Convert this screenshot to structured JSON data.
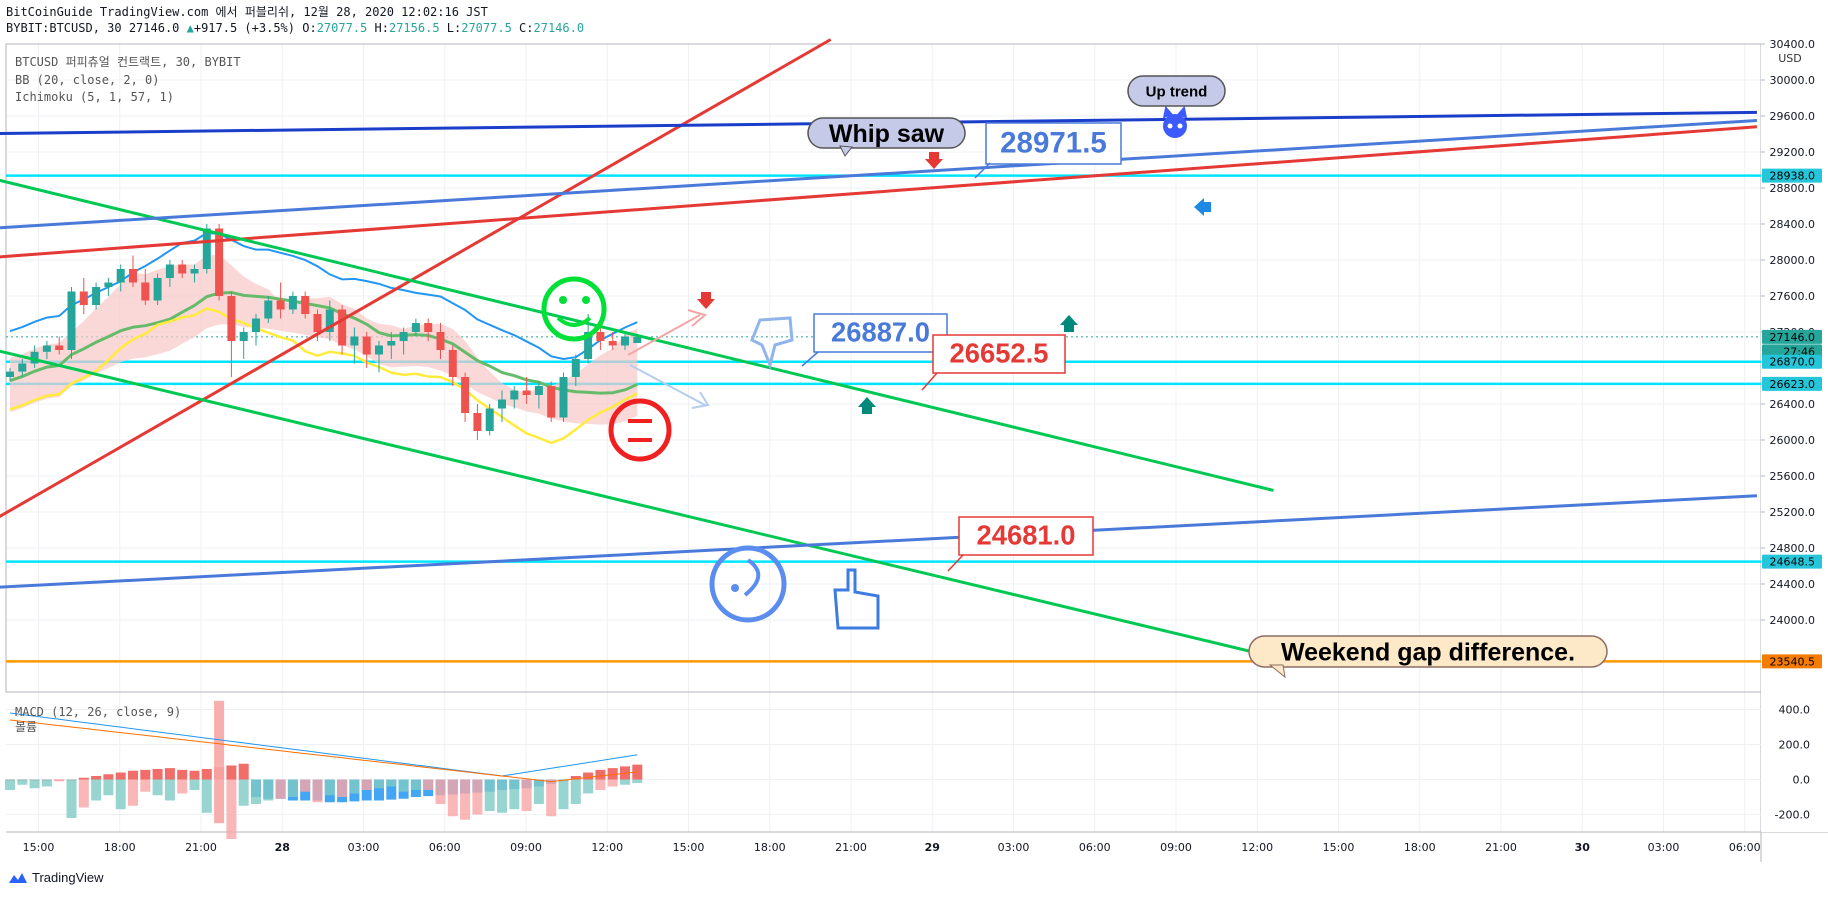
{
  "header": {
    "line1": "BitCoinGuide TradingView.com 에서 퍼블리쉬, 12월 28, 2020 12:02:16 JST",
    "sym": "BYBIT:BTCUSD, 30 27146.0",
    "change": "+917.5 (+3.5%)",
    "o_label": "O:",
    "o": "27077.5",
    "h_label": "H:",
    "h": "27156.5",
    "l_label": "L:",
    "l": "27077.5",
    "c_label": "C:",
    "c": "27146.0"
  },
  "legend": {
    "title": "BTCUSD 퍼피츄얼 컨트랙트, 30, BYBIT",
    "bb": "BB (20, close, 2, 0)",
    "ichimoku": "Ichimoku (5, 1, 57, 1)",
    "macd": "MACD (12, 26, close, 9)",
    "macd_sub": "볼륨"
  },
  "logo_text": "TradingView",
  "currency": "USD",
  "chart_data": {
    "type": "candlestick",
    "symbol": "BYBIT:BTCUSD",
    "interval": "30",
    "price_axis": {
      "min": 23200,
      "max": 30400,
      "tick_labels": [
        "30400.0",
        "30000.0",
        "29600.0",
        "29200.0",
        "28800.0",
        "28400.0",
        "28000.0",
        "27600.0",
        "27200.0",
        "26400.0",
        "26000.0",
        "25600.0",
        "25200.0",
        "24800.0",
        "24400.0",
        "24000.0"
      ],
      "tick_values": [
        30400,
        30000,
        29600,
        29200,
        28800,
        28400,
        28000,
        27600,
        27200,
        26400,
        26000,
        25600,
        25200,
        24800,
        24400,
        24000
      ],
      "badges": [
        {
          "label": "28938.0",
          "value": 28938,
          "color": "#26c6da"
        },
        {
          "label": "27146.0",
          "value": 27146,
          "color": "#26a69a"
        },
        {
          "label": "27:46",
          "value": 26985,
          "color": "#26a69a"
        },
        {
          "label": "26870.0",
          "value": 26870,
          "color": "#26c6da"
        },
        {
          "label": "26623.0",
          "value": 26623,
          "color": "#26c6da"
        },
        {
          "label": "24648.5",
          "value": 24648.5,
          "color": "#26c6da"
        },
        {
          "label": "23540.5",
          "value": 23540.5,
          "color": "#f57c00"
        }
      ]
    },
    "time_axis": {
      "labels": [
        "15:00",
        "18:00",
        "21:00",
        "28",
        "03:00",
        "06:00",
        "09:00",
        "12:00",
        "15:00",
        "18:00",
        "21:00",
        "29",
        "03:00",
        "06:00",
        "09:00",
        "12:00",
        "15:00",
        "18:00",
        "21:00",
        "30",
        "03:00",
        "06:00"
      ],
      "bold": [
        "28",
        "29",
        "30"
      ],
      "t_start": 0.6,
      "t_end": 22.2
    },
    "candles": [
      [
        0,
        26700,
        26800,
        26650,
        26760
      ],
      [
        1,
        26760,
        26900,
        26700,
        26850
      ],
      [
        2,
        26850,
        27050,
        26800,
        26980
      ],
      [
        3,
        26980,
        27100,
        26900,
        27050
      ],
      [
        4,
        27050,
        27150,
        26950,
        27000
      ],
      [
        5,
        27000,
        27700,
        26900,
        27650
      ],
      [
        6,
        27650,
        27800,
        27400,
        27500
      ],
      [
        7,
        27500,
        27750,
        27450,
        27700
      ],
      [
        8,
        27700,
        27800,
        27600,
        27750
      ],
      [
        9,
        27750,
        27950,
        27650,
        27900
      ],
      [
        10,
        27900,
        28050,
        27700,
        27750
      ],
      [
        11,
        27750,
        27900,
        27500,
        27550
      ],
      [
        12,
        27550,
        27850,
        27500,
        27800
      ],
      [
        13,
        27800,
        28000,
        27700,
        27950
      ],
      [
        14,
        27950,
        28000,
        27800,
        27850
      ],
      [
        15,
        27850,
        27950,
        27750,
        27900
      ],
      [
        16,
        27900,
        28400,
        27850,
        28350
      ],
      [
        17,
        28350,
        28400,
        27550,
        27600
      ],
      [
        18,
        27600,
        27650,
        26700,
        27100
      ],
      [
        19,
        27100,
        27250,
        26900,
        27200
      ],
      [
        20,
        27200,
        27400,
        27050,
        27350
      ],
      [
        21,
        27350,
        27600,
        27300,
        27550
      ],
      [
        22,
        27550,
        27750,
        27350,
        27450
      ],
      [
        23,
        27450,
        27650,
        27400,
        27600
      ],
      [
        24,
        27600,
        27650,
        27350,
        27400
      ],
      [
        25,
        27400,
        27450,
        27100,
        27200
      ],
      [
        26,
        27200,
        27550,
        27100,
        27450
      ],
      [
        27,
        27450,
        27500,
        26950,
        27050
      ],
      [
        28,
        27050,
        27250,
        26850,
        27150
      ],
      [
        29,
        27150,
        27200,
        26800,
        26950
      ],
      [
        30,
        26950,
        27100,
        26750,
        27050
      ],
      [
        31,
        27050,
        27200,
        26900,
        27100
      ],
      [
        32,
        27100,
        27250,
        26950,
        27200
      ],
      [
        33,
        27200,
        27350,
        27150,
        27300
      ],
      [
        34,
        27300,
        27350,
        27100,
        27200
      ],
      [
        35,
        27200,
        27300,
        26900,
        27000
      ],
      [
        36,
        27000,
        27050,
        26600,
        26700
      ],
      [
        37,
        26700,
        26750,
        26200,
        26300
      ],
      [
        38,
        26300,
        26400,
        26000,
        26100
      ],
      [
        39,
        26100,
        26400,
        26050,
        26350
      ],
      [
        40,
        26350,
        26550,
        26200,
        26450
      ],
      [
        41,
        26450,
        26600,
        26350,
        26550
      ],
      [
        42,
        26550,
        26700,
        26400,
        26500
      ],
      [
        43,
        26500,
        26650,
        26350,
        26600
      ],
      [
        44,
        26600,
        26650,
        26200,
        26250
      ],
      [
        45,
        26250,
        26750,
        26200,
        26700
      ],
      [
        46,
        26700,
        26950,
        26600,
        26900
      ],
      [
        47,
        26900,
        27400,
        26850,
        27200
      ],
      [
        48,
        27200,
        27250,
        27000,
        27100
      ],
      [
        49,
        27100,
        27200,
        27000,
        27050
      ],
      [
        50,
        27050,
        27200,
        27000,
        27150
      ],
      [
        51,
        27077.5,
        27156.5,
        27077.5,
        27146
      ]
    ],
    "indicators": {
      "bb": "BB (20, close, 2, 0)",
      "ichimoku": "Ichimoku (5, 1, 57, 1)"
    },
    "macd": {
      "label": "MACD (12, 26, close, 9)",
      "axis_labels": [
        "400.0",
        "200.0",
        "0.0",
        "-200.0"
      ],
      "axis_values": [
        400,
        200,
        0,
        -200
      ],
      "histogram": [
        0,
        0,
        0,
        0,
        0,
        0,
        10,
        20,
        30,
        40,
        50,
        55,
        60,
        65,
        55,
        50,
        60,
        70,
        80,
        90,
        -100,
        -110,
        -110,
        -120,
        -120,
        -120,
        -130,
        -130,
        -125,
        -120,
        -120,
        -115,
        -110,
        -100,
        -95,
        -90,
        -85,
        -80,
        -75,
        -70,
        -60,
        -55,
        -50,
        -40,
        -25,
        -10,
        20,
        40,
        55,
        65,
        75,
        85
      ],
      "volume": [
        -60,
        -30,
        -50,
        -40,
        -10,
        -220,
        -160,
        -120,
        -90,
        -170,
        -150,
        -70,
        -90,
        -120,
        -80,
        -60,
        -190,
        -260,
        -340,
        -150,
        -140,
        -120,
        -110,
        -100,
        -70,
        -130,
        -90,
        -100,
        -80,
        -60,
        -50,
        -40,
        -70,
        -60,
        -60,
        -140,
        -210,
        -230,
        -200,
        -180,
        -190,
        -170,
        -180,
        -140,
        -210,
        -170,
        -140,
        -80,
        -60,
        -40,
        -30,
        -20
      ]
    },
    "annotations": [
      {
        "text": "Whip saw",
        "price": 29480,
        "kind": "callout"
      },
      {
        "text": "28971.5",
        "price": 29280,
        "kind": "price-label"
      },
      {
        "text": "Up trend",
        "price": 29850,
        "kind": "callout"
      },
      {
        "text": "26887.0",
        "price": 27280,
        "kind": "price-label"
      },
      {
        "text": "26652.5",
        "price": 27000,
        "kind": "price-label-red"
      },
      {
        "text": "24681.0",
        "price": 25140,
        "kind": "price-label-red"
      },
      {
        "text": "Weekend gap difference.",
        "price": 23830,
        "kind": "callout"
      }
    ],
    "horizontal_lines": [
      {
        "value": 28938,
        "color": "#00e5ff"
      },
      {
        "value": 26870,
        "color": "#00e5ff"
      },
      {
        "value": 26623,
        "color": "#00e5ff"
      },
      {
        "value": 24648.5,
        "color": "#00e5ff"
      },
      {
        "value": 23540.5,
        "color": "#ff9800"
      }
    ],
    "trend_lines": [
      {
        "color": "#e53935",
        "from": [
          0,
          24880
        ],
        "to": [
          10.75,
          30450
        ]
      },
      {
        "color": "#e53935",
        "from": [
          0,
          28000
        ],
        "to": [
          22.15,
          29480
        ]
      },
      {
        "color": "#00c853",
        "from": [
          0,
          29000
        ],
        "to": [
          16.2,
          25440
        ]
      },
      {
        "color": "#00c853",
        "from": [
          0,
          27100
        ],
        "to": [
          16.2,
          23590
        ]
      },
      {
        "color": "#1a3ec9",
        "from": [
          0,
          29400
        ],
        "to": [
          22.15,
          29640
        ]
      },
      {
        "color": "#4a7ad9",
        "from": [
          0,
          28330
        ],
        "to": [
          22.15,
          29550
        ]
      },
      {
        "color": "#4a7ad9",
        "from": [
          0,
          24340
        ],
        "to": [
          22.15,
          25380
        ]
      }
    ]
  }
}
